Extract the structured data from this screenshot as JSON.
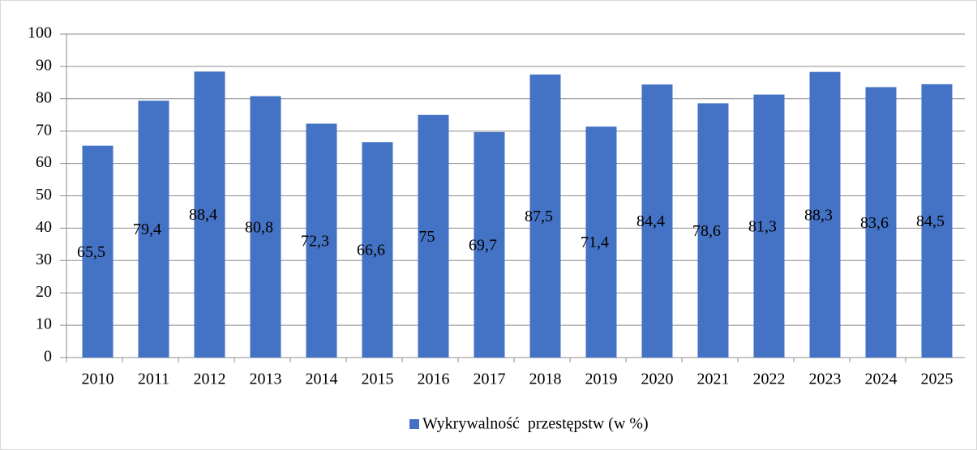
{
  "chart_data": {
    "type": "bar",
    "categories": [
      "2010",
      "2011",
      "2012",
      "2013",
      "2014",
      "2015",
      "2016",
      "2017",
      "2018",
      "2019",
      "2020",
      "2021",
      "2022",
      "2023",
      "2024",
      "2025"
    ],
    "series": [
      {
        "name": "Wykrywalność  przestępstw (w %)",
        "color": "#4472c4",
        "values": [
          65.5,
          79.4,
          88.4,
          80.8,
          72.3,
          66.6,
          75,
          69.7,
          87.5,
          71.4,
          84.4,
          78.6,
          81.3,
          88.3,
          83.6,
          84.5
        ],
        "value_labels": [
          "65,5",
          "79,4",
          "88,4",
          "80,8",
          "72,3",
          "66,6",
          "75",
          "69,7",
          "87,5",
          "71,4",
          "84,4",
          "78,6",
          "81,3",
          "88,3",
          "83,6",
          "84,5"
        ]
      }
    ],
    "ylim": [
      0,
      100
    ],
    "yticks": [
      0,
      10,
      20,
      30,
      40,
      50,
      60,
      70,
      80,
      90,
      100
    ],
    "grid": true,
    "legend": "bottom"
  }
}
